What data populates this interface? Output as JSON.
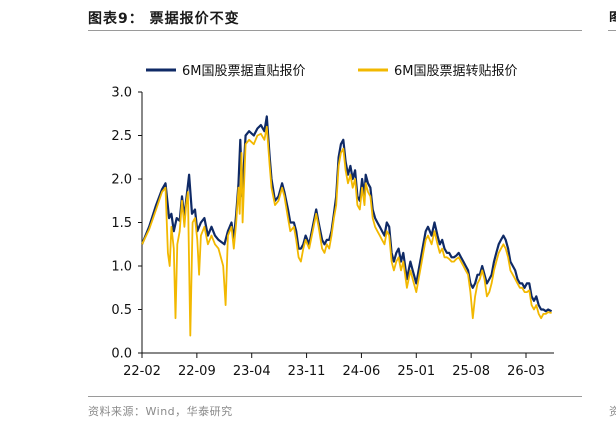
{
  "header": {
    "title": "图表9：  票据报价不变"
  },
  "footer": {
    "source": "资料来源：Wind，华泰研究"
  },
  "edge": {
    "title_fragment": "图",
    "source_fragment": "资"
  },
  "chart_data": {
    "type": "line",
    "title": "",
    "xlabel": "",
    "ylabel": "",
    "ylim": [
      0,
      3.0
    ],
    "yticks": [
      "0.0",
      "0.5",
      "1.0",
      "1.5",
      "2.0",
      "2.5",
      "3.0"
    ],
    "xticks": [
      "22-02",
      "22-09",
      "23-04",
      "23-11",
      "24-06",
      "25-01",
      "25-08",
      "26-03"
    ],
    "grid": false,
    "legend": "top",
    "series": [
      {
        "name": "6M国股票据直贴报价",
        "color": "#0f2a66",
        "points": [
          [
            0,
            1.25
          ],
          [
            0.6,
            1.45
          ],
          [
            1.2,
            1.7
          ],
          [
            1.7,
            1.88
          ],
          [
            2.0,
            1.95
          ],
          [
            2.3,
            1.55
          ],
          [
            2.5,
            1.6
          ],
          [
            2.7,
            1.4
          ],
          [
            2.95,
            1.55
          ],
          [
            3.2,
            1.52
          ],
          [
            3.4,
            1.8
          ],
          [
            3.6,
            1.55
          ],
          [
            3.75,
            1.75
          ],
          [
            4.0,
            2.05
          ],
          [
            4.25,
            1.6
          ],
          [
            4.5,
            1.65
          ],
          [
            4.7,
            1.4
          ],
          [
            5.0,
            1.5
          ],
          [
            5.3,
            1.55
          ],
          [
            5.6,
            1.35
          ],
          [
            5.9,
            1.45
          ],
          [
            6.2,
            1.35
          ],
          [
            6.5,
            1.3
          ],
          [
            7.0,
            1.25
          ],
          [
            7.3,
            1.4
          ],
          [
            7.6,
            1.5
          ],
          [
            7.8,
            1.3
          ],
          [
            8.0,
            1.6
          ],
          [
            8.2,
            1.95
          ],
          [
            8.35,
            2.45
          ],
          [
            8.5,
            1.8
          ],
          [
            8.8,
            2.5
          ],
          [
            9.1,
            2.55
          ],
          [
            9.5,
            2.5
          ],
          [
            9.8,
            2.58
          ],
          [
            10.1,
            2.62
          ],
          [
            10.4,
            2.55
          ],
          [
            10.6,
            2.72
          ],
          [
            10.85,
            2.25
          ],
          [
            11.0,
            2.0
          ],
          [
            11.3,
            1.75
          ],
          [
            11.6,
            1.8
          ],
          [
            11.9,
            1.95
          ],
          [
            12.1,
            1.85
          ],
          [
            12.4,
            1.65
          ],
          [
            12.6,
            1.5
          ],
          [
            12.9,
            1.5
          ],
          [
            13.1,
            1.4
          ],
          [
            13.3,
            1.2
          ],
          [
            13.5,
            1.2
          ],
          [
            13.7,
            1.25
          ],
          [
            13.9,
            1.35
          ],
          [
            14.2,
            1.25
          ],
          [
            14.5,
            1.45
          ],
          [
            14.8,
            1.65
          ],
          [
            15.0,
            1.5
          ],
          [
            15.3,
            1.3
          ],
          [
            15.5,
            1.25
          ],
          [
            15.7,
            1.3
          ],
          [
            15.9,
            1.3
          ],
          [
            16.1,
            1.4
          ],
          [
            16.3,
            1.6
          ],
          [
            16.5,
            1.8
          ],
          [
            16.7,
            2.25
          ],
          [
            16.9,
            2.4
          ],
          [
            17.1,
            2.45
          ],
          [
            17.3,
            2.2
          ],
          [
            17.5,
            2.05
          ],
          [
            17.7,
            2.15
          ],
          [
            17.9,
            2.0
          ],
          [
            18.1,
            2.1
          ],
          [
            18.3,
            1.8
          ],
          [
            18.5,
            1.75
          ],
          [
            18.7,
            2.0
          ],
          [
            18.9,
            1.8
          ],
          [
            19.0,
            2.05
          ],
          [
            19.2,
            1.95
          ],
          [
            19.4,
            1.9
          ],
          [
            19.6,
            1.65
          ],
          [
            19.8,
            1.55
          ],
          [
            20.0,
            1.5
          ],
          [
            20.2,
            1.45
          ],
          [
            20.4,
            1.4
          ],
          [
            20.6,
            1.35
          ],
          [
            20.8,
            1.5
          ],
          [
            21.0,
            1.45
          ],
          [
            21.2,
            1.15
          ],
          [
            21.4,
            1.05
          ],
          [
            21.6,
            1.15
          ],
          [
            21.8,
            1.2
          ],
          [
            22.0,
            1.05
          ],
          [
            22.2,
            1.15
          ],
          [
            22.5,
            0.85
          ],
          [
            22.8,
            1.05
          ],
          [
            23.0,
            0.95
          ],
          [
            23.3,
            0.8
          ],
          [
            23.5,
            0.95
          ],
          [
            23.7,
            1.1
          ],
          [
            23.9,
            1.25
          ],
          [
            24.1,
            1.4
          ],
          [
            24.3,
            1.45
          ],
          [
            24.6,
            1.35
          ],
          [
            24.85,
            1.5
          ],
          [
            25.1,
            1.35
          ],
          [
            25.3,
            1.25
          ],
          [
            25.5,
            1.3
          ],
          [
            25.7,
            1.2
          ],
          [
            25.9,
            1.15
          ],
          [
            26.1,
            1.15
          ],
          [
            26.3,
            1.1
          ],
          [
            26.5,
            1.1
          ],
          [
            26.7,
            1.12
          ],
          [
            26.9,
            1.15
          ],
          [
            27.1,
            1.1
          ],
          [
            27.3,
            1.05
          ],
          [
            27.5,
            1.0
          ],
          [
            27.7,
            0.95
          ],
          [
            27.9,
            0.8
          ],
          [
            28.1,
            0.75
          ],
          [
            28.3,
            0.8
          ],
          [
            28.5,
            0.9
          ],
          [
            28.7,
            0.9
          ],
          [
            28.9,
            1.0
          ],
          [
            29.1,
            0.9
          ],
          [
            29.3,
            0.8
          ],
          [
            29.5,
            0.85
          ],
          [
            29.7,
            0.9
          ],
          [
            29.9,
            1.05
          ],
          [
            30.1,
            1.15
          ],
          [
            30.3,
            1.25
          ],
          [
            30.5,
            1.3
          ],
          [
            30.7,
            1.35
          ],
          [
            30.9,
            1.3
          ],
          [
            31.1,
            1.2
          ],
          [
            31.3,
            1.05
          ],
          [
            31.5,
            1.0
          ],
          [
            31.7,
            0.95
          ],
          [
            31.9,
            0.85
          ],
          [
            32.1,
            0.8
          ],
          [
            32.3,
            0.8
          ],
          [
            32.5,
            0.75
          ],
          [
            32.7,
            0.8
          ],
          [
            32.9,
            0.8
          ],
          [
            33.1,
            0.65
          ],
          [
            33.3,
            0.6
          ],
          [
            33.5,
            0.65
          ],
          [
            33.7,
            0.55
          ],
          [
            33.9,
            0.5
          ],
          [
            34.1,
            0.5
          ],
          [
            34.3,
            0.48
          ],
          [
            34.5,
            0.5
          ],
          [
            34.8,
            0.48
          ]
        ]
      },
      {
        "name": "6M国股票据转贴报价",
        "color": "#f2b800",
        "points": [
          [
            0,
            1.25
          ],
          [
            0.6,
            1.42
          ],
          [
            1.2,
            1.65
          ],
          [
            1.7,
            1.85
          ],
          [
            2.0,
            1.9
          ],
          [
            2.2,
            1.15
          ],
          [
            2.35,
            1.0
          ],
          [
            2.5,
            1.45
          ],
          [
            2.7,
            1.2
          ],
          [
            2.85,
            0.4
          ],
          [
            3.0,
            1.25
          ],
          [
            3.2,
            1.4
          ],
          [
            3.4,
            1.75
          ],
          [
            3.6,
            1.45
          ],
          [
            3.75,
            1.7
          ],
          [
            3.9,
            1.85
          ],
          [
            4.1,
            0.2
          ],
          [
            4.3,
            1.5
          ],
          [
            4.5,
            1.55
          ],
          [
            4.7,
            1.3
          ],
          [
            4.85,
            0.9
          ],
          [
            5.0,
            1.35
          ],
          [
            5.3,
            1.45
          ],
          [
            5.6,
            1.25
          ],
          [
            5.9,
            1.35
          ],
          [
            6.2,
            1.25
          ],
          [
            6.5,
            1.2
          ],
          [
            6.9,
            1.0
          ],
          [
            7.1,
            0.55
          ],
          [
            7.3,
            1.35
          ],
          [
            7.6,
            1.45
          ],
          [
            7.8,
            1.2
          ],
          [
            8.0,
            1.5
          ],
          [
            8.2,
            1.9
          ],
          [
            8.3,
            1.6
          ],
          [
            8.45,
            2.3
          ],
          [
            8.55,
            1.5
          ],
          [
            8.8,
            2.4
          ],
          [
            9.1,
            2.45
          ],
          [
            9.5,
            2.4
          ],
          [
            9.8,
            2.5
          ],
          [
            10.1,
            2.52
          ],
          [
            10.4,
            2.45
          ],
          [
            10.6,
            2.6
          ],
          [
            10.85,
            2.15
          ],
          [
            11.0,
            1.9
          ],
          [
            11.3,
            1.7
          ],
          [
            11.6,
            1.75
          ],
          [
            11.9,
            1.9
          ],
          [
            12.1,
            1.8
          ],
          [
            12.4,
            1.55
          ],
          [
            12.6,
            1.4
          ],
          [
            12.9,
            1.45
          ],
          [
            13.1,
            1.3
          ],
          [
            13.3,
            1.1
          ],
          [
            13.5,
            1.05
          ],
          [
            13.7,
            1.2
          ],
          [
            13.9,
            1.3
          ],
          [
            14.2,
            1.2
          ],
          [
            14.5,
            1.4
          ],
          [
            14.8,
            1.6
          ],
          [
            15.0,
            1.45
          ],
          [
            15.3,
            1.2
          ],
          [
            15.5,
            1.15
          ],
          [
            15.7,
            1.25
          ],
          [
            15.9,
            1.2
          ],
          [
            16.1,
            1.35
          ],
          [
            16.3,
            1.55
          ],
          [
            16.5,
            1.7
          ],
          [
            16.7,
            2.15
          ],
          [
            16.9,
            2.3
          ],
          [
            17.1,
            2.35
          ],
          [
            17.3,
            2.1
          ],
          [
            17.5,
            1.95
          ],
          [
            17.7,
            2.05
          ],
          [
            17.9,
            1.9
          ],
          [
            18.1,
            2.0
          ],
          [
            18.3,
            1.7
          ],
          [
            18.5,
            1.65
          ],
          [
            18.7,
            1.9
          ],
          [
            18.9,
            1.7
          ],
          [
            19.0,
            1.95
          ],
          [
            19.2,
            1.85
          ],
          [
            19.4,
            1.8
          ],
          [
            19.6,
            1.55
          ],
          [
            19.8,
            1.45
          ],
          [
            20.0,
            1.4
          ],
          [
            20.2,
            1.35
          ],
          [
            20.4,
            1.3
          ],
          [
            20.6,
            1.25
          ],
          [
            20.8,
            1.4
          ],
          [
            21.0,
            1.35
          ],
          [
            21.2,
            1.05
          ],
          [
            21.4,
            0.95
          ],
          [
            21.6,
            1.05
          ],
          [
            21.8,
            1.1
          ],
          [
            22.0,
            0.95
          ],
          [
            22.2,
            1.05
          ],
          [
            22.5,
            0.75
          ],
          [
            22.8,
            0.95
          ],
          [
            23.0,
            0.85
          ],
          [
            23.3,
            0.7
          ],
          [
            23.5,
            0.85
          ],
          [
            23.7,
            1.0
          ],
          [
            23.9,
            1.15
          ],
          [
            24.1,
            1.3
          ],
          [
            24.3,
            1.35
          ],
          [
            24.6,
            1.25
          ],
          [
            24.85,
            1.4
          ],
          [
            25.1,
            1.25
          ],
          [
            25.3,
            1.15
          ],
          [
            25.5,
            1.2
          ],
          [
            25.7,
            1.1
          ],
          [
            25.9,
            1.1
          ],
          [
            26.1,
            1.08
          ],
          [
            26.3,
            1.05
          ],
          [
            26.5,
            1.05
          ],
          [
            26.7,
            1.08
          ],
          [
            26.9,
            1.1
          ],
          [
            27.1,
            1.05
          ],
          [
            27.3,
            1.0
          ],
          [
            27.5,
            0.95
          ],
          [
            27.7,
            0.9
          ],
          [
            27.9,
            0.7
          ],
          [
            28.1,
            0.4
          ],
          [
            28.3,
            0.65
          ],
          [
            28.5,
            0.8
          ],
          [
            28.7,
            0.85
          ],
          [
            28.9,
            0.95
          ],
          [
            29.1,
            0.85
          ],
          [
            29.3,
            0.65
          ],
          [
            29.5,
            0.7
          ],
          [
            29.7,
            0.8
          ],
          [
            29.9,
            0.95
          ],
          [
            30.1,
            1.05
          ],
          [
            30.3,
            1.15
          ],
          [
            30.5,
            1.2
          ],
          [
            30.7,
            1.25
          ],
          [
            30.9,
            1.2
          ],
          [
            31.1,
            1.1
          ],
          [
            31.3,
            0.95
          ],
          [
            31.5,
            0.9
          ],
          [
            31.7,
            0.85
          ],
          [
            31.9,
            0.8
          ],
          [
            32.1,
            0.75
          ],
          [
            32.3,
            0.75
          ],
          [
            32.5,
            0.7
          ],
          [
            32.7,
            0.7
          ],
          [
            32.9,
            0.72
          ],
          [
            33.1,
            0.55
          ],
          [
            33.3,
            0.5
          ],
          [
            33.5,
            0.55
          ],
          [
            33.7,
            0.45
          ],
          [
            33.9,
            0.4
          ],
          [
            34.1,
            0.45
          ],
          [
            34.3,
            0.45
          ],
          [
            34.5,
            0.47
          ],
          [
            34.8,
            0.46
          ]
        ]
      }
    ]
  }
}
